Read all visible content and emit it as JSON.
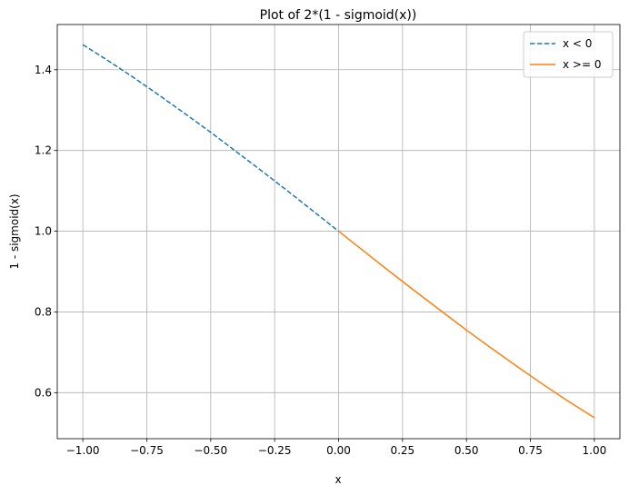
{
  "chart_data": {
    "type": "line",
    "title": "Plot of 2*(1 - sigmoid(x))",
    "xlabel": "x",
    "ylabel": "1 - sigmoid(x)",
    "xlim": [
      -1.1,
      1.1
    ],
    "ylim": [
      0.486,
      1.512
    ],
    "xticks": [
      -1.0,
      -0.75,
      -0.5,
      -0.25,
      0.0,
      0.25,
      0.5,
      0.75,
      1.0
    ],
    "xtick_labels": [
      "−1.00",
      "−0.75",
      "−0.50",
      "−0.25",
      "0.00",
      "0.25",
      "0.50",
      "0.75",
      "1.00"
    ],
    "yticks": [
      0.6,
      0.8,
      1.0,
      1.2,
      1.4
    ],
    "ytick_labels": [
      "0.6",
      "0.8",
      "1.0",
      "1.2",
      "1.4"
    ],
    "grid": true,
    "legend_position": "top-right",
    "series": [
      {
        "name": "x < 0",
        "color": "#1f77b4",
        "linestyle": "dashed",
        "x": [
          -1.0,
          -0.9,
          -0.8,
          -0.7,
          -0.6,
          -0.5,
          -0.4,
          -0.3,
          -0.2,
          -0.1,
          0.0
        ],
        "y": [
          1.462,
          1.422,
          1.38,
          1.336,
          1.291,
          1.245,
          1.197,
          1.149,
          1.1,
          1.05,
          1.0
        ]
      },
      {
        "name": "x >= 0",
        "color": "#ff7f0e",
        "linestyle": "solid",
        "x": [
          0.0,
          0.1,
          0.2,
          0.3,
          0.4,
          0.5,
          0.6,
          0.7,
          0.8,
          0.9,
          1.0
        ],
        "y": [
          1.0,
          0.95,
          0.9,
          0.851,
          0.803,
          0.755,
          0.709,
          0.664,
          0.62,
          0.578,
          0.538
        ]
      }
    ]
  }
}
